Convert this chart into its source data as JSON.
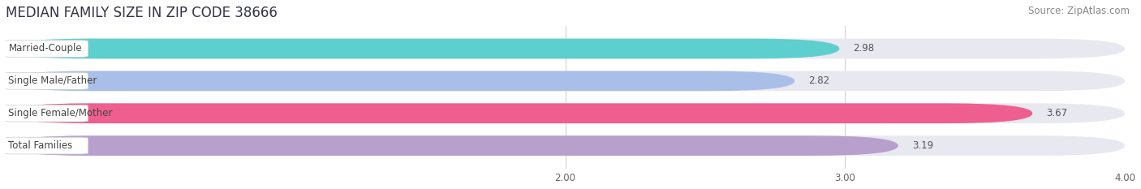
{
  "title": "MEDIAN FAMILY SIZE IN ZIP CODE 38666",
  "source": "Source: ZipAtlas.com",
  "categories": [
    "Married-Couple",
    "Single Male/Father",
    "Single Female/Mother",
    "Total Families"
  ],
  "values": [
    2.98,
    2.82,
    3.67,
    3.19
  ],
  "bar_colors": [
    "#5ecfcf",
    "#aabfe8",
    "#ee5f90",
    "#b8a0cc"
  ],
  "bar_bg_color": "#e8e8f0",
  "xlim_left": 0.0,
  "xlim_right": 4.0,
  "xstart": 0.0,
  "xticks": [
    2.0,
    3.0,
    4.0
  ],
  "xtick_labels": [
    "2.00",
    "3.00",
    "4.00"
  ],
  "background_color": "#ffffff",
  "bar_bg_color2": "#ebebf2",
  "bar_height": 0.62,
  "title_fontsize": 12,
  "label_fontsize": 8.5,
  "value_fontsize": 8.5,
  "source_fontsize": 8.5
}
